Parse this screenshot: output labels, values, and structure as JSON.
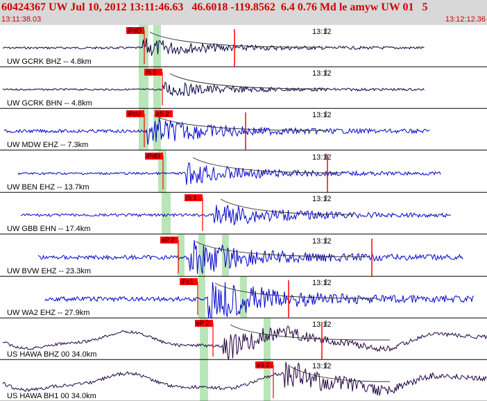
{
  "header": {
    "title": "60424367 UW Jul 10, 2012 13:11:46.63   46.6018 -119.8562  6.4 0.76 Md le amyw UW 01   5",
    "time_start": "13:11:38.03",
    "time_end": "13:12:12.36"
  },
  "time_mark": "13:12",
  "colors": {
    "header_bg": "#d8d8d8",
    "title": "#d00000",
    "pick_box": "#ff0000",
    "window": "#b8e6b8"
  },
  "traces": [
    {
      "label": "UW GCRK BHZ -- 4.8km",
      "color": "#000040",
      "pick": "iPdD",
      "amp": 6
    },
    {
      "label": "UW GCRK BHN -- 4.8km",
      "color": "#000040",
      "pick": "iS 1",
      "amp": 5
    },
    {
      "label": "UW MDW EHZ -- 7.3km",
      "color": "#0000cc",
      "pick": "iPcU",
      "pick2": "eS 2",
      "amp": 9
    },
    {
      "label": "UW BEN EHZ -- 13.7km",
      "color": "#0000cc",
      "pick": "iPdD",
      "amp": 7
    },
    {
      "label": "UW GBB EHN -- 17.4km",
      "color": "#0000cc",
      "pick": "iS 1",
      "amp": 8
    },
    {
      "label": "UW BVW EHZ -- 23.3km",
      "color": "#0000cc",
      "pick": "eP 2",
      "amp": 12
    },
    {
      "label": "UW WA2 EHZ -- 27.9km",
      "color": "#0000cc",
      "pick": "iPc1",
      "amp": 14
    },
    {
      "label": "US HAWA BHZ 00 34.0km",
      "color": "#200040",
      "pick": "eP 2",
      "amp": 14,
      "time_label": "13:12"
    },
    {
      "label": "US HAWA BH1 00 34.0km",
      "color": "#200040",
      "pick": "eS 2",
      "amp": 16
    }
  ]
}
